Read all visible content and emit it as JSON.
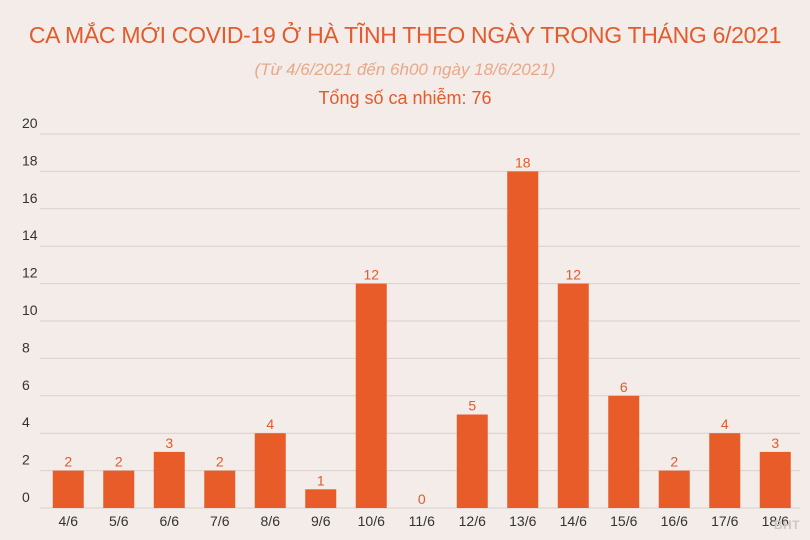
{
  "header": {
    "title": "CA MẮC MỚI COVID-19 Ở HÀ TĨNH THEO NGÀY TRONG THÁNG 6/2021",
    "subtitle": "(Từ 4/6/2021 đến 6h00 ngày 18/6/2021)",
    "total": "Tổng số ca nhiễm: 76"
  },
  "watermark": "BHT",
  "colors": {
    "bar": "#e85c2a",
    "label": "#e35a2c",
    "background": "#f3ece8",
    "grid": "#d8d0cc"
  },
  "chart_data": {
    "type": "bar",
    "title": "CA MẮC MỚI COVID-19 Ở HÀ TĨNH THEO NGÀY TRONG THÁNG 6/2021",
    "subtitle": "(Từ 4/6/2021 đến 6h00 ngày 18/6/2021)",
    "xlabel": "",
    "ylabel": "",
    "categories": [
      "4/6",
      "5/6",
      "6/6",
      "7/6",
      "8/6",
      "9/6",
      "10/6",
      "11/6",
      "12/6",
      "13/6",
      "14/6",
      "15/6",
      "16/6",
      "17/6",
      "18/6"
    ],
    "values": [
      2,
      2,
      3,
      2,
      4,
      1,
      12,
      0,
      5,
      18,
      12,
      6,
      2,
      4,
      3
    ],
    "ylim": [
      0,
      20
    ],
    "yticks": [
      0,
      2,
      4,
      6,
      8,
      10,
      12,
      14,
      16,
      18,
      20
    ],
    "grid": true,
    "data_labels": true
  }
}
